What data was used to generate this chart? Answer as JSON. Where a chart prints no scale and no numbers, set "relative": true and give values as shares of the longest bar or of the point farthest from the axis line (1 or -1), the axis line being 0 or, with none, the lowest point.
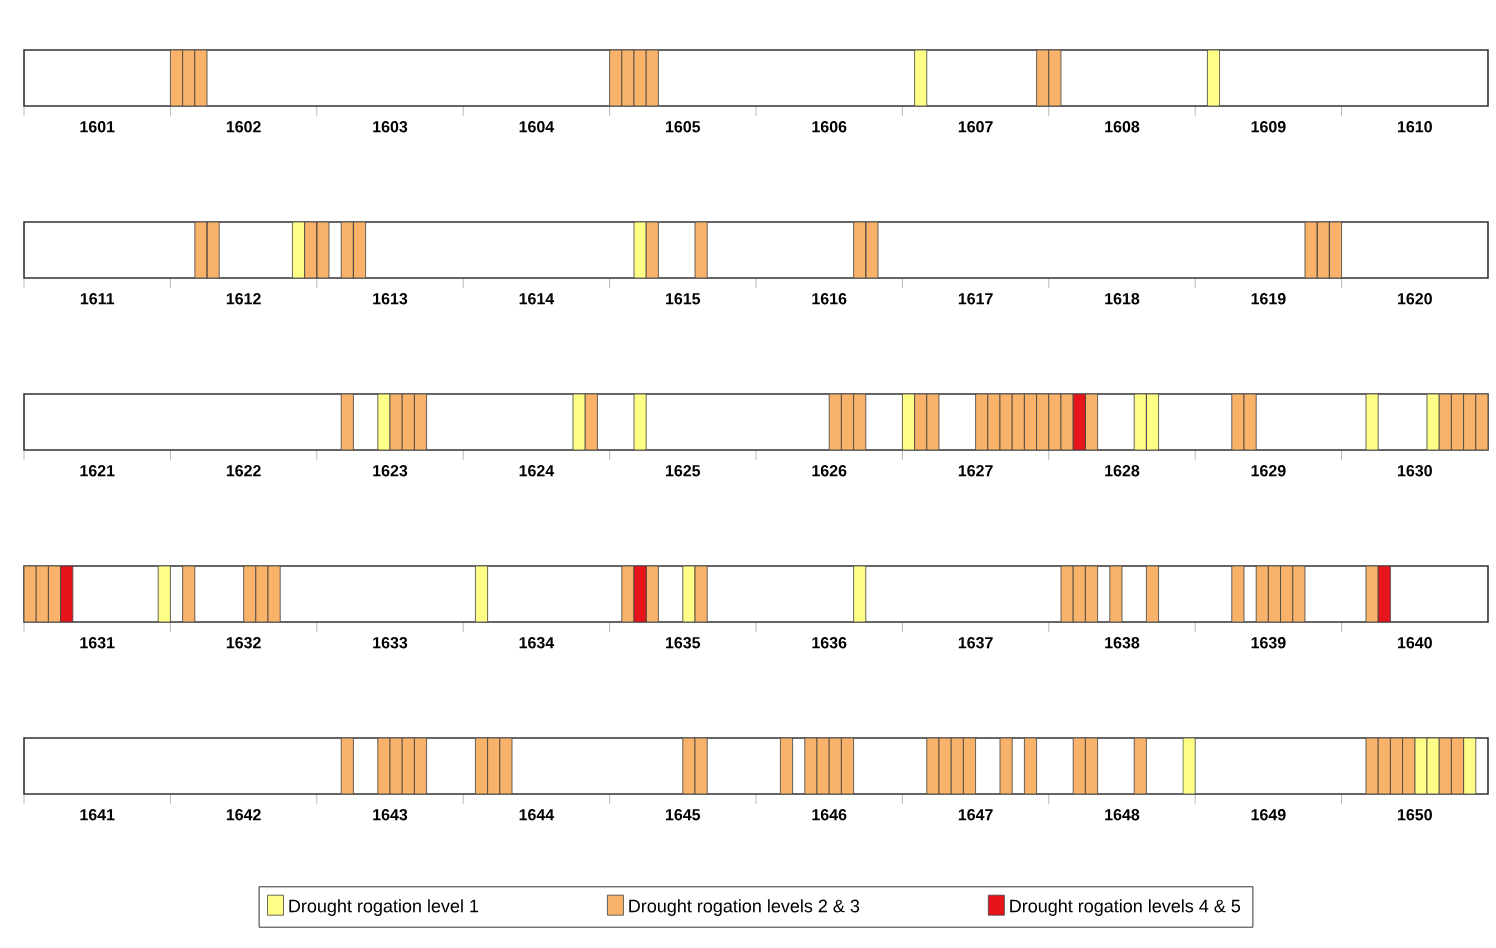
{
  "chart_data": [
    {
      "type": "bar",
      "relative": true,
      "xlim": [
        "1601",
        "1611"
      ],
      "xticks": [
        {
          "value": "1601",
          "label": null
        },
        {
          "value": "1601-07",
          "label": "1601"
        },
        {
          "value": "1602",
          "label": null
        },
        {
          "value": "1602-07",
          "label": "1602"
        },
        {
          "value": "1603",
          "label": null
        },
        {
          "value": "1603-07",
          "label": "1603"
        },
        {
          "value": "1604",
          "label": null
        },
        {
          "value": "1604-07",
          "label": "1604"
        },
        {
          "value": "1605",
          "label": null
        },
        {
          "value": "1605-07",
          "label": "1605"
        },
        {
          "value": "1606",
          "label": null
        },
        {
          "value": "1606-07",
          "label": "1606"
        },
        {
          "value": "1607",
          "label": null
        },
        {
          "value": "1607-07",
          "label": "1607"
        },
        {
          "value": "1608",
          "label": null
        },
        {
          "value": "1608-07",
          "label": "1608"
        },
        {
          "value": "1609",
          "label": null
        },
        {
          "value": "1609-07",
          "label": "1609"
        },
        {
          "value": "1610",
          "label": null
        },
        {
          "value": "1610-07",
          "label": "1610"
        }
      ],
      "series": [
        {
          "color": "#ffff88",
          "x": [
            "1607-02",
            "1609-02"
          ],
          "values": [
            1,
            1
          ]
        },
        {
          "color": "#f9b26a",
          "x": [
            "1602-01",
            "1602-02",
            "1602-03",
            "1605-01",
            "1605-02",
            "1605-03",
            "1605-04",
            "1607-12",
            "1608-01"
          ],
          "values": [
            1,
            1,
            1,
            1,
            1,
            1,
            1,
            1,
            1
          ]
        }
      ]
    },
    {
      "type": "bar",
      "relative": true,
      "xlim": [
        "1611",
        "1621"
      ],
      "xticks": [
        {
          "value": "1611",
          "label": null
        },
        {
          "value": "1611-07",
          "label": "1611"
        },
        {
          "value": "1612",
          "label": null
        },
        {
          "value": "1612-07",
          "label": "1612"
        },
        {
          "value": "1613",
          "label": null
        },
        {
          "value": "1613-07",
          "label": "1613"
        },
        {
          "value": "1614",
          "label": null
        },
        {
          "value": "1614-07",
          "label": "1614"
        },
        {
          "value": "1615",
          "label": null
        },
        {
          "value": "1615-07",
          "label": "1615"
        },
        {
          "value": "1616",
          "label": null
        },
        {
          "value": "1616-07",
          "label": "1616"
        },
        {
          "value": "1617",
          "label": null
        },
        {
          "value": "1617-07",
          "label": "1617"
        },
        {
          "value": "1618",
          "label": null
        },
        {
          "value": "1618-07",
          "label": "1618"
        },
        {
          "value": "1619",
          "label": null
        },
        {
          "value": "1619-07",
          "label": "1619"
        },
        {
          "value": "1620",
          "label": null
        },
        {
          "value": "1620-07",
          "label": "1620"
        }
      ],
      "series": [
        {
          "color": "#ffff88",
          "x": [
            "1612-11",
            "1615-03"
          ],
          "values": [
            1,
            1
          ]
        },
        {
          "color": "#f9b26a",
          "x": [
            "1612-03",
            "1612-04",
            "1612-12",
            "1613-01",
            "1613-03",
            "1613-04",
            "1615-04",
            "1615-08",
            "1616-09",
            "1616-10",
            "1619-10",
            "1619-11",
            "1619-12"
          ],
          "values": [
            1,
            1,
            1,
            1,
            1,
            1,
            1,
            1,
            1,
            1,
            1,
            1,
            1
          ]
        }
      ]
    },
    {
      "type": "bar",
      "relative": true,
      "xlim": [
        "1621",
        "1631"
      ],
      "xticks": [
        {
          "value": "1621",
          "label": null
        },
        {
          "value": "1621-07",
          "label": "1621"
        },
        {
          "value": "1622",
          "label": null
        },
        {
          "value": "1622-07",
          "label": "1622"
        },
        {
          "value": "1623",
          "label": null
        },
        {
          "value": "1623-07",
          "label": "1623"
        },
        {
          "value": "1624",
          "label": null
        },
        {
          "value": "1624-07",
          "label": "1624"
        },
        {
          "value": "1625",
          "label": null
        },
        {
          "value": "1625-07",
          "label": "1625"
        },
        {
          "value": "1626",
          "label": null
        },
        {
          "value": "1626-07",
          "label": "1626"
        },
        {
          "value": "1627",
          "label": null
        },
        {
          "value": "1627-07",
          "label": "1627"
        },
        {
          "value": "1628",
          "label": null
        },
        {
          "value": "1628-07",
          "label": "1628"
        },
        {
          "value": "1629",
          "label": null
        },
        {
          "value": "1629-07",
          "label": "1629"
        },
        {
          "value": "1630",
          "label": null
        },
        {
          "value": "1630-07",
          "label": "1630"
        }
      ],
      "series": [
        {
          "color": "#ffff88",
          "x": [
            "1623-06",
            "1624-10",
            "1625-03",
            "1627-01",
            "1628-08",
            "1628-09",
            "1630-03",
            "1630-08"
          ],
          "values": [
            1,
            1,
            1,
            1,
            1,
            1,
            1,
            1
          ]
        },
        {
          "color": "#f9b26a",
          "x": [
            "1623-03",
            "1623-07",
            "1623-08",
            "1623-09",
            "1624-11",
            "1626-07",
            "1626-08",
            "1626-09",
            "1627-02",
            "1627-03",
            "1627-07",
            "1627-08",
            "1627-09",
            "1627-10",
            "1627-11",
            "1627-12",
            "1628-01",
            "1628-02",
            "1628-04",
            "1629-04",
            "1629-05",
            "1630-09",
            "1630-10",
            "1630-11",
            "1630-12"
          ],
          "values": [
            1,
            1,
            1,
            1,
            1,
            1,
            1,
            1,
            1,
            1,
            1,
            1,
            1,
            1,
            1,
            1,
            1,
            1,
            1,
            1,
            1,
            1,
            1,
            1,
            1
          ]
        },
        {
          "color": "#e8141b",
          "x": [
            "1628-03"
          ],
          "values": [
            1
          ]
        }
      ]
    },
    {
      "type": "bar",
      "relative": true,
      "xlim": [
        "1631",
        "1641"
      ],
      "xticks": [
        {
          "value": "1631",
          "label": null
        },
        {
          "value": "1631-07",
          "label": "1631"
        },
        {
          "value": "1632",
          "label": null
        },
        {
          "value": "1632-07",
          "label": "1632"
        },
        {
          "value": "1633",
          "label": null
        },
        {
          "value": "1633-07",
          "label": "1633"
        },
        {
          "value": "1634",
          "label": null
        },
        {
          "value": "1634-07",
          "label": "1634"
        },
        {
          "value": "1635",
          "label": null
        },
        {
          "value": "1635-07",
          "label": "1635"
        },
        {
          "value": "1636",
          "label": null
        },
        {
          "value": "1636-07",
          "label": "1636"
        },
        {
          "value": "1637",
          "label": null
        },
        {
          "value": "1637-07",
          "label": "1637"
        },
        {
          "value": "1638",
          "label": null
        },
        {
          "value": "1638-07",
          "label": "1638"
        },
        {
          "value": "1639",
          "label": null
        },
        {
          "value": "1639-07",
          "label": "1639"
        },
        {
          "value": "1640",
          "label": null
        },
        {
          "value": "1640-07",
          "label": "1640"
        }
      ],
      "series": [
        {
          "color": "#ffff88",
          "x": [
            "1631-12",
            "1634-02",
            "1635-07",
            "1636-09"
          ],
          "values": [
            1,
            1,
            1,
            1
          ]
        },
        {
          "color": "#f9b26a",
          "x": [
            "1631-01",
            "1631-02",
            "1631-03",
            "1632-02",
            "1632-07",
            "1632-08",
            "1632-09",
            "1635-02",
            "1635-04",
            "1635-08",
            "1638-02",
            "1638-03",
            "1638-04",
            "1638-06",
            "1638-09",
            "1639-04",
            "1639-06",
            "1639-07",
            "1639-08",
            "1639-09",
            "1640-03"
          ],
          "values": [
            1,
            1,
            1,
            1,
            1,
            1,
            1,
            1,
            1,
            1,
            1,
            1,
            1,
            1,
            1,
            1,
            1,
            1,
            1,
            1,
            1
          ]
        },
        {
          "color": "#e8141b",
          "x": [
            "1631-04",
            "1635-03",
            "1640-04"
          ],
          "values": [
            1,
            1,
            1
          ]
        }
      ]
    },
    {
      "type": "bar",
      "relative": true,
      "xlim": [
        "1641",
        "1651"
      ],
      "legend": "bottom",
      "xticks": [
        {
          "value": "1641",
          "label": null
        },
        {
          "value": "1641-07",
          "label": "1641"
        },
        {
          "value": "1642",
          "label": null
        },
        {
          "value": "1642-07",
          "label": "1642"
        },
        {
          "value": "1643",
          "label": null
        },
        {
          "value": "1643-07",
          "label": "1643"
        },
        {
          "value": "1644",
          "label": null
        },
        {
          "value": "1644-07",
          "label": "1644"
        },
        {
          "value": "1645",
          "label": null
        },
        {
          "value": "1645-07",
          "label": "1645"
        },
        {
          "value": "1646",
          "label": null
        },
        {
          "value": "1646-07",
          "label": "1646"
        },
        {
          "value": "1647",
          "label": null
        },
        {
          "value": "1647-07",
          "label": "1647"
        },
        {
          "value": "1648",
          "label": null
        },
        {
          "value": "1648-07",
          "label": "1648"
        },
        {
          "value": "1649",
          "label": null
        },
        {
          "value": "1649-07",
          "label": "1649"
        },
        {
          "value": "1650",
          "label": null
        },
        {
          "value": "1650-07",
          "label": "1650"
        }
      ],
      "series": [
        {
          "name": "Drought rogation level 1",
          "color": "#ffff88",
          "x": [
            "1648-12",
            "1650-07",
            "1650-08",
            "1650-11"
          ],
          "values": [
            1,
            1,
            1,
            1
          ]
        },
        {
          "name": "Drought rogation levels 2 & 3",
          "color": "#f9b26a",
          "x": [
            "1643-03",
            "1643-06",
            "1643-07",
            "1643-08",
            "1643-09",
            "1644-02",
            "1644-03",
            "1644-04",
            "1645-07",
            "1645-08",
            "1646-03",
            "1646-05",
            "1646-06",
            "1646-07",
            "1646-08",
            "1647-03",
            "1647-04",
            "1647-05",
            "1647-06",
            "1647-09",
            "1647-11",
            "1648-03",
            "1648-04",
            "1648-08",
            "1650-03",
            "1650-04",
            "1650-05",
            "1650-06",
            "1650-09",
            "1650-10"
          ],
          "values": [
            1,
            1,
            1,
            1,
            1,
            1,
            1,
            1,
            1,
            1,
            1,
            1,
            1,
            1,
            1,
            1,
            1,
            1,
            1,
            1,
            1,
            1,
            1,
            1,
            1,
            1,
            1,
            1,
            1,
            1
          ]
        },
        {
          "name": "Drought rogation levels 4 & 5",
          "color": "#e8141b"
        }
      ]
    }
  ]
}
